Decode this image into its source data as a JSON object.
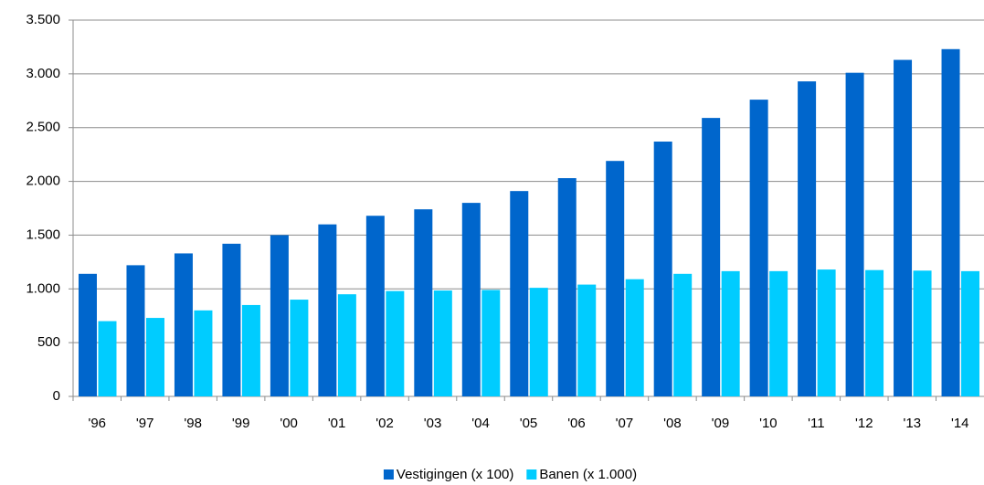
{
  "chart_data": {
    "type": "bar",
    "categories": [
      "'96",
      "'97",
      "'98",
      "'99",
      "'00",
      "'01",
      "'02",
      "'03",
      "'04",
      "'05",
      "'06",
      "'07",
      "'08",
      "'09",
      "'10",
      "'11",
      "'12",
      "'13",
      "'14"
    ],
    "series": [
      {
        "name": "Vestigingen (x 100)",
        "color": "#0066cc",
        "values": [
          1140,
          1220,
          1330,
          1420,
          1500,
          1600,
          1680,
          1740,
          1800,
          1910,
          2030,
          2190,
          2370,
          2590,
          2760,
          2930,
          3010,
          3130,
          3230
        ]
      },
      {
        "name": "Banen (x 1.000)",
        "color": "#00ccff",
        "values": [
          700,
          730,
          800,
          850,
          900,
          950,
          980,
          985,
          990,
          1010,
          1040,
          1090,
          1140,
          1165,
          1165,
          1180,
          1175,
          1170,
          1165
        ]
      }
    ],
    "ylim": [
      0,
      3500
    ],
    "yticks": [
      0,
      500,
      {
        "value": 1000,
        "label": "1.000"
      },
      {
        "value": 1500,
        "label": "1.500"
      },
      {
        "value": 2000,
        "label": "2.000"
      },
      {
        "value": 2500,
        "label": "2.500"
      },
      {
        "value": 3000,
        "label": "3.000"
      },
      {
        "value": 3500,
        "label": "3.500"
      }
    ],
    "grid": true,
    "legend": "bottom"
  }
}
